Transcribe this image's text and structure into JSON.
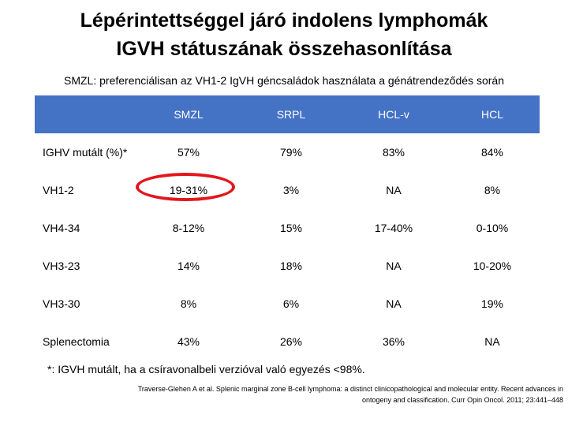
{
  "title": {
    "line1": "Lépérintettséggel járó indolens lymphomák",
    "line2": "IGVH státuszának összehasonlítása"
  },
  "subtitle": "SMZL: preferenciálisan az VH1-2 IgVH géncsaládok használata a génátrendeződés során",
  "table": {
    "headers": [
      "",
      "SMZL",
      "SRPL",
      "HCL-v",
      "HCL"
    ],
    "rows": [
      {
        "label": "IGHV mutált (%)*",
        "values": [
          "57%",
          "79%",
          "83%",
          "84%"
        ]
      },
      {
        "label": "VH1-2",
        "values": [
          "19-31%",
          "3%",
          "NA",
          "8%"
        ]
      },
      {
        "label": "VH4-34",
        "values": [
          "8-12%",
          "15%",
          "17-40%",
          "0-10%"
        ]
      },
      {
        "label": "VH3-23",
        "values": [
          "14%",
          "18%",
          "NA",
          "10-20%"
        ]
      },
      {
        "label": "VH3-30",
        "values": [
          "8%",
          "6%",
          "NA",
          "19%"
        ]
      },
      {
        "label": "Splenectomia",
        "values": [
          "43%",
          "26%",
          "36%",
          "NA"
        ]
      }
    ]
  },
  "footnote": "*: IGVH mutált, ha a csíravonalbeli verzióval való egyezés <98%.",
  "citation": {
    "line1": "Traverse-Glehen A et al. Splenic marginal zone B-cell lymphoma: a distinct clinicopathological and molecular entity. Recent advances in",
    "line2": "ontogeny and classification. Curr Opin Oncol. 2011; 23:441–448"
  },
  "colors": {
    "header_bg": "#4472c4",
    "highlight": "#e3161d"
  }
}
